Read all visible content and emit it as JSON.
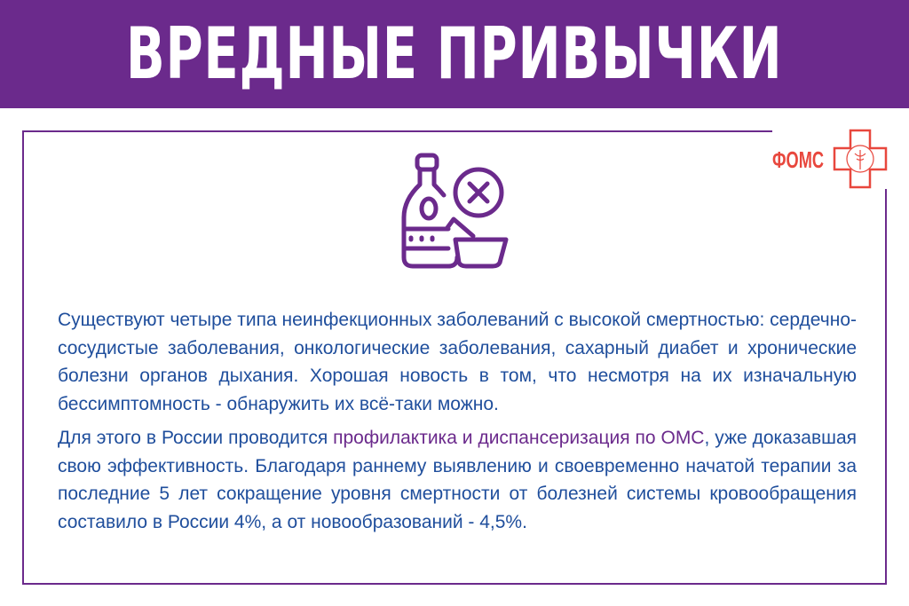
{
  "header": {
    "title": "ВРЕДНЫЕ ПРИВЫЧКИ"
  },
  "logo": {
    "text": "ФОМС"
  },
  "icon": "alcohol-and-drugs-prohibited-icon",
  "colors": {
    "header_bg": "#6b2a8c",
    "body_text": "#1f4e9c",
    "highlight": "#6b2a8c",
    "logo": "#e8473d"
  },
  "content": {
    "paragraph1": "Существуют четыре типа неинфекционных заболеваний с высокой смертностью: сердечно-сосудистые заболевания, онкологические заболевания, сахарный диабет и хронические болезни органов дыхания. Хорошая новость в том, что несмотря на их изначальную бессимптомность - обнаружить их всё-таки можно.",
    "paragraph2_start": "Для этого в России проводится ",
    "paragraph2_highlight": "профилактика и диспансеризация по ОМС",
    "paragraph2_end": ", уже доказавшая свою эффективность. Благодаря раннему выявлению и своевременно начатой терапии за последние 5 лет сокращение уровня смертности от болезней системы кровообращения составило в России 4%, а от новообразований - 4,5%."
  }
}
